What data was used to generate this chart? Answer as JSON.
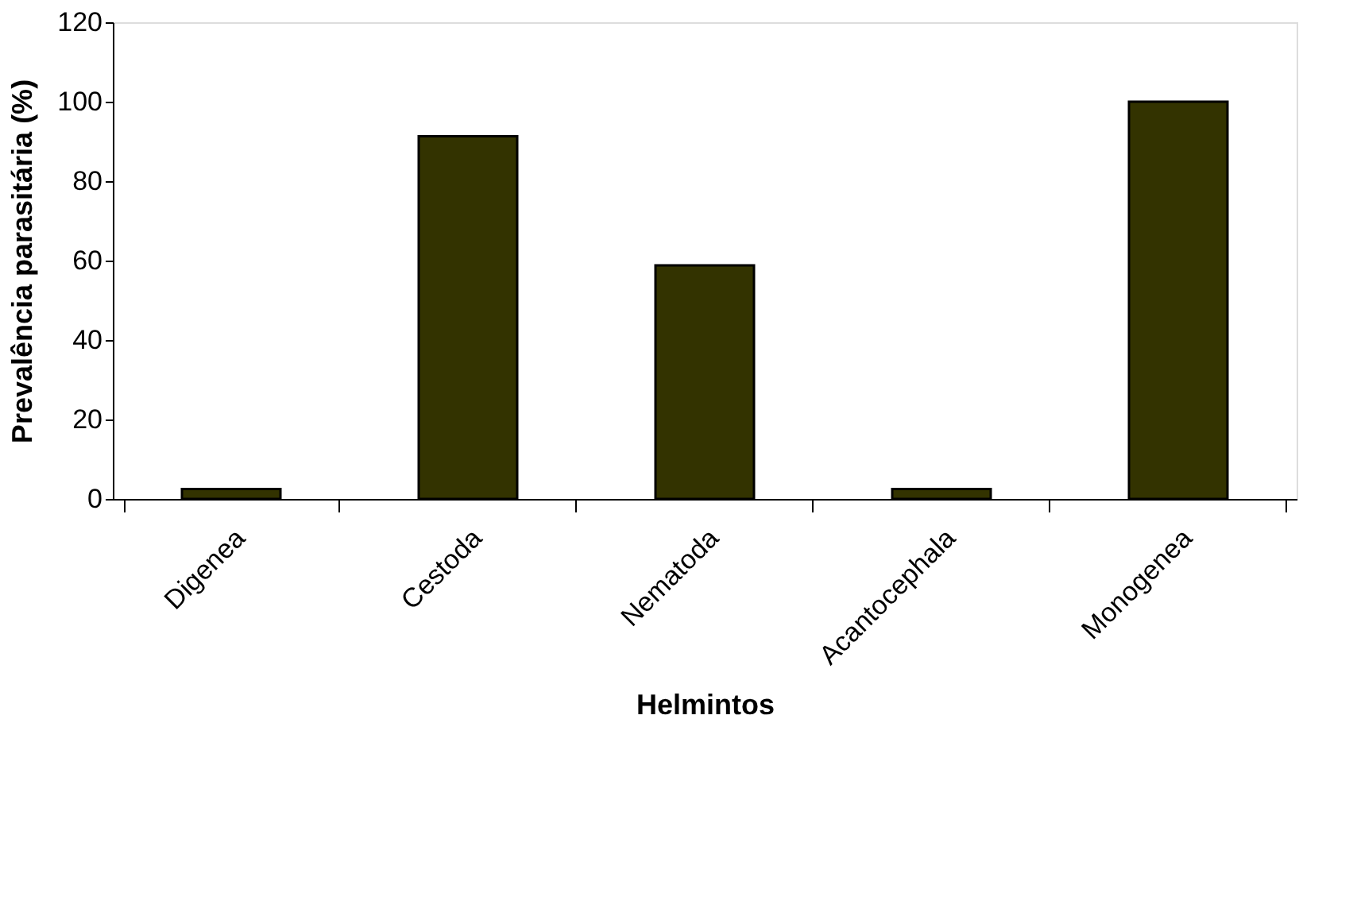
{
  "chart_data": {
    "type": "bar",
    "xlabel": "Helmintos",
    "ylabel": "Prevalência parasitária (%)",
    "categories": [
      "Digenea",
      "Cestoda",
      "Nematoda",
      "Acantocephala",
      "Monogenea"
    ],
    "values": [
      2.5,
      91.3,
      58.8,
      2.5,
      100
    ],
    "color": "#333300",
    "ylim": [
      0,
      120
    ],
    "yticks": [
      0,
      20,
      40,
      60,
      80,
      100,
      120
    ],
    "grid": false
  }
}
